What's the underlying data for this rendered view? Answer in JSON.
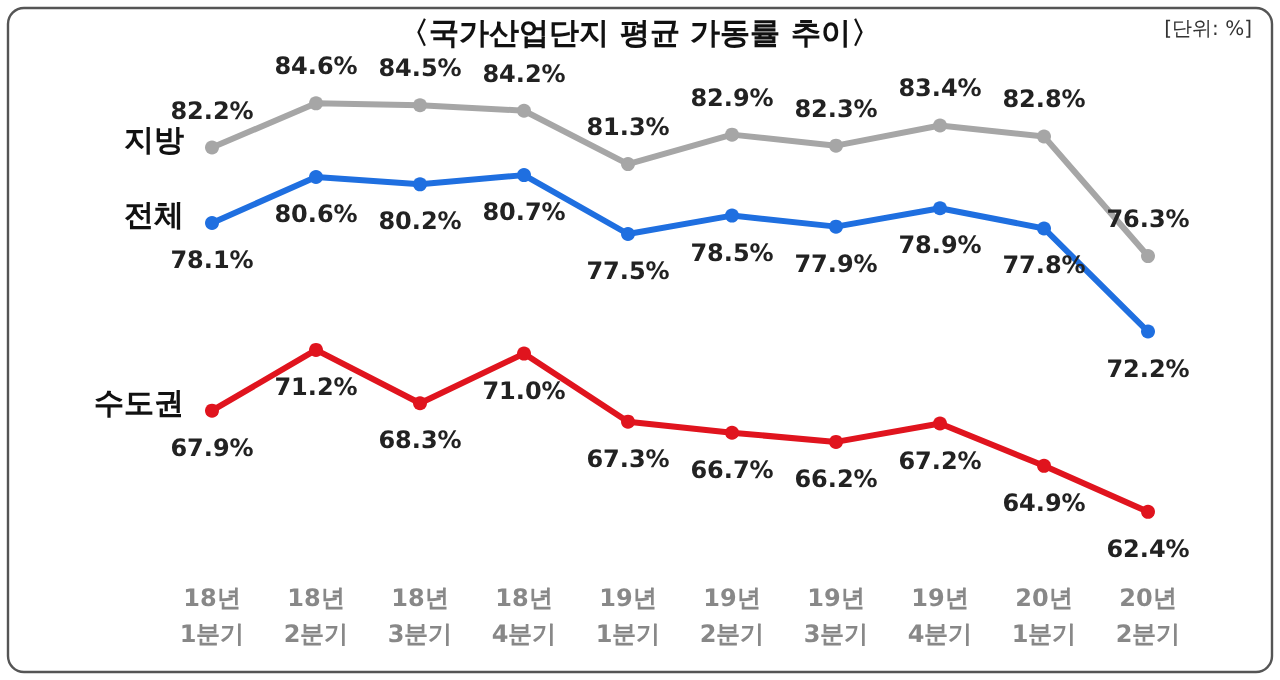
{
  "chart_data": {
    "type": "line",
    "title": "〈국가산업단지 평균 가동률 추이〉",
    "annotations": [
      "[단위: %]"
    ],
    "categories": [
      "18년\n1분기",
      "18년\n2분기",
      "18년\n3분기",
      "18년\n4분기",
      "19년\n1분기",
      "19년\n2분기",
      "19년\n3분기",
      "19년\n4분기",
      "20년\n1분기",
      "20년\n2분기"
    ],
    "series": [
      {
        "name": "지방",
        "color": "#a6a6a6",
        "values": [
          82.2,
          84.6,
          84.5,
          84.2,
          81.3,
          82.9,
          82.3,
          83.4,
          82.8,
          76.3
        ],
        "value_labels": [
          "82.2%",
          "84.6%",
          "84.5%",
          "84.2%",
          "81.3%",
          "82.9%",
          "82.3%",
          "83.4%",
          "82.8%",
          "76.3%"
        ]
      },
      {
        "name": "전체",
        "color": "#1f6fe0",
        "values": [
          78.1,
          80.6,
          80.2,
          80.7,
          77.5,
          78.5,
          77.9,
          78.9,
          77.8,
          72.2
        ],
        "value_labels": [
          "78.1%",
          "80.6%",
          "80.2%",
          "80.7%",
          "77.5%",
          "78.5%",
          "77.9%",
          "78.9%",
          "77.8%",
          "72.2%"
        ]
      },
      {
        "name": "수도권",
        "color": "#e0141e",
        "values": [
          67.9,
          71.2,
          68.3,
          71.0,
          67.3,
          66.7,
          66.2,
          67.2,
          64.9,
          62.4
        ],
        "value_labels": [
          "67.9%",
          "71.2%",
          "68.3%",
          "71.0%",
          "67.3%",
          "66.7%",
          "66.2%",
          "67.2%",
          "64.9%",
          "62.4%"
        ]
      }
    ],
    "marker": "circle",
    "line_style": "solid",
    "grid": false,
    "legend": false
  }
}
